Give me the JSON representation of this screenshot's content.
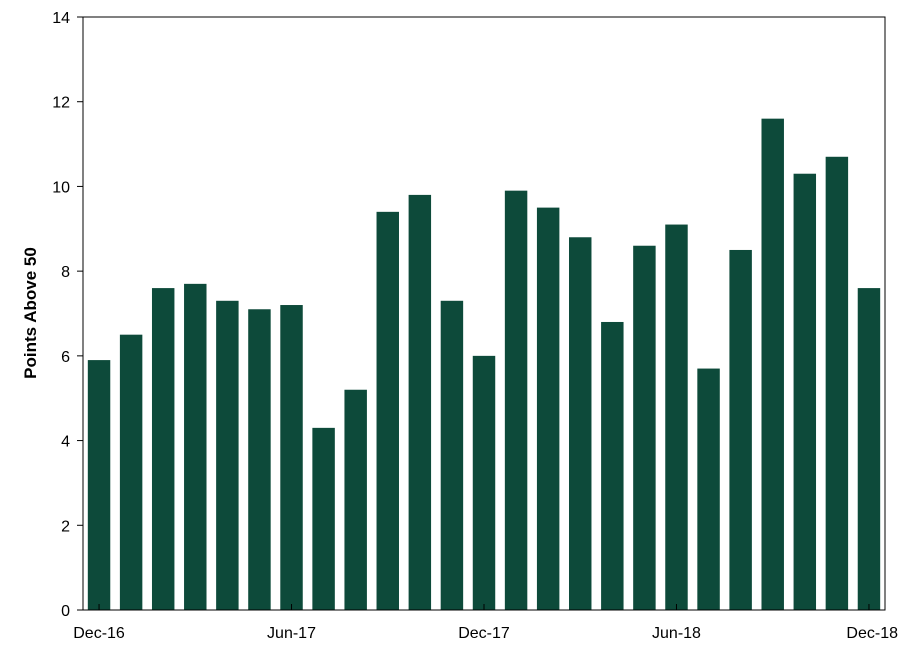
{
  "chart_data": {
    "type": "bar",
    "title": "",
    "xlabel": "",
    "ylabel": "Points Above 50",
    "ylim": [
      0,
      14
    ],
    "yticks": [
      0,
      2,
      4,
      6,
      8,
      10,
      12,
      14
    ],
    "grid": false,
    "legend": "none",
    "bar_color": "#0d4a3a",
    "categories": [
      "Dec-16",
      "Jan-17",
      "Feb-17",
      "Mar-17",
      "Apr-17",
      "May-17",
      "Jun-17",
      "Jul-17",
      "Aug-17",
      "Sep-17",
      "Oct-17",
      "Nov-17",
      "Dec-17",
      "Jan-18",
      "Feb-18",
      "Mar-18",
      "Apr-18",
      "May-18",
      "Jun-18",
      "Jul-18",
      "Aug-18",
      "Sep-18",
      "Oct-18",
      "Nov-18",
      "Dec-18"
    ],
    "values": [
      5.9,
      6.5,
      7.6,
      7.7,
      7.3,
      7.1,
      7.2,
      4.3,
      5.2,
      9.4,
      9.8,
      7.3,
      6.0,
      9.9,
      9.5,
      8.8,
      6.8,
      8.6,
      9.1,
      5.7,
      8.5,
      11.6,
      10.3,
      10.7,
      7.6
    ],
    "x_tick_labels": [
      {
        "index": 0,
        "label": "Dec-16"
      },
      {
        "index": 6,
        "label": "Jun-17"
      },
      {
        "index": 12,
        "label": "Dec-17"
      },
      {
        "index": 18,
        "label": "Jun-18"
      },
      {
        "index": 24,
        "label": "Dec-18"
      }
    ]
  }
}
